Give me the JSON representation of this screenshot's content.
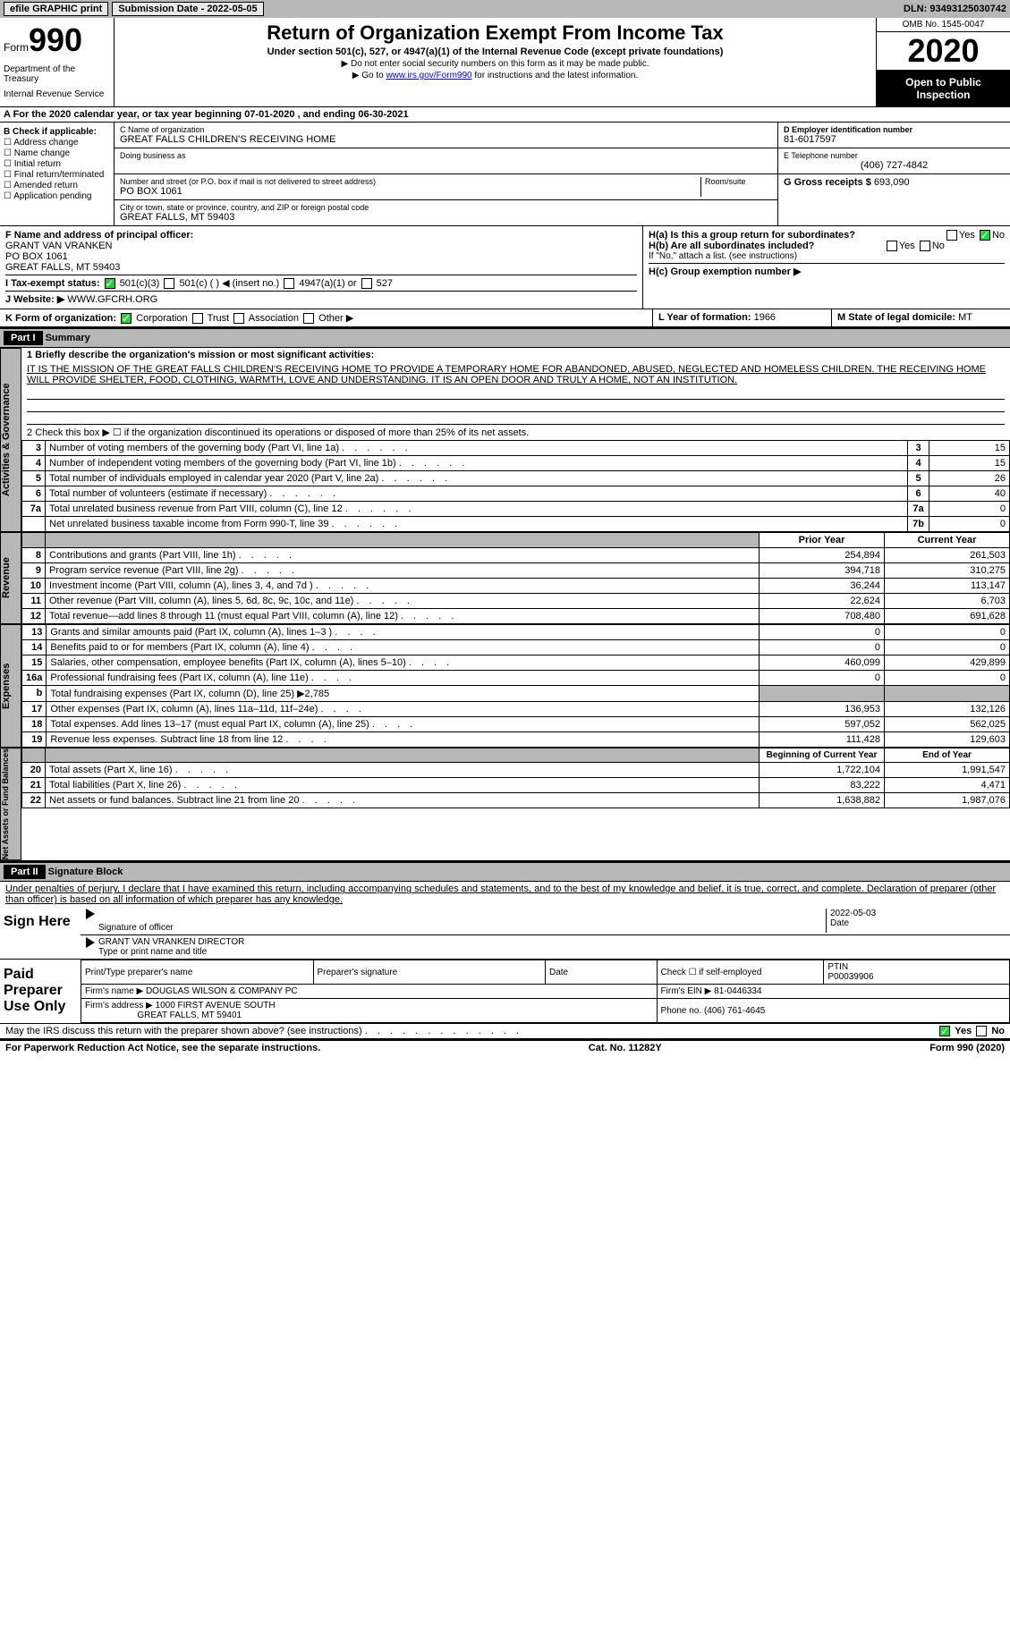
{
  "topbar": {
    "efile": "efile GRAPHIC print",
    "submission_label": "Submission Date - 2022-05-05",
    "dln": "DLN: 93493125030742"
  },
  "header": {
    "form_prefix": "Form",
    "form_num": "990",
    "dept": "Department of the Treasury",
    "irs": "Internal Revenue Service",
    "title": "Return of Organization Exempt From Income Tax",
    "subtitle": "Under section 501(c), 527, or 4947(a)(1) of the Internal Revenue Code (except private foundations)",
    "note1": "▶ Do not enter social security numbers on this form as it may be made public.",
    "note2_pre": "▶ Go to ",
    "note2_link": "www.irs.gov/Form990",
    "note2_post": " for instructions and the latest information.",
    "omb": "OMB No. 1545-0047",
    "year": "2020",
    "inspection": "Open to Public Inspection"
  },
  "row_a": "A For the 2020 calendar year, or tax year beginning 07-01-2020    , and ending 06-30-2021",
  "section_b": {
    "label": "B Check if applicable:",
    "opts": [
      "Address change",
      "Name change",
      "Initial return",
      "Final return/terminated",
      "Amended return",
      "Application pending"
    ]
  },
  "section_c": {
    "name_lbl": "C Name of organization",
    "name": "GREAT FALLS CHILDREN'S RECEIVING HOME",
    "dba_lbl": "Doing business as",
    "addr_lbl": "Number and street (or P.O. box if mail is not delivered to street address)",
    "room_lbl": "Room/suite",
    "addr": "PO BOX 1061",
    "city_lbl": "City or town, state or province, country, and ZIP or foreign postal code",
    "city": "GREAT FALLS, MT  59403"
  },
  "section_d": {
    "ein_lbl": "D Employer identification number",
    "ein": "81-6017597",
    "tel_lbl": "E Telephone number",
    "tel": "(406) 727-4842",
    "gross_lbl": "G Gross receipts $",
    "gross": "693,090"
  },
  "section_f": {
    "lbl": "F  Name and address of principal officer:",
    "name": "GRANT VAN VRANKEN",
    "addr1": "PO BOX 1061",
    "addr2": "GREAT FALLS, MT  59403"
  },
  "section_h": {
    "ha": "H(a)  Is this a group return for subordinates?",
    "hb": "H(b)  Are all subordinates included?",
    "hb_note": "If \"No,\" attach a list. (see instructions)",
    "hc": "H(c)  Group exemption number ▶",
    "yes": "Yes",
    "no": "No"
  },
  "row_i": {
    "lbl": "I    Tax-exempt status:",
    "opt1": "501(c)(3)",
    "opt2": "501(c) (  ) ◀ (insert no.)",
    "opt3": "4947(a)(1) or",
    "opt4": "527"
  },
  "row_j": {
    "lbl": "J   Website: ▶",
    "val": "WWW.GFCRH.ORG"
  },
  "row_k": {
    "lbl": "K Form of organization:",
    "opts": [
      "Corporation",
      "Trust",
      "Association",
      "Other ▶"
    ]
  },
  "row_l": {
    "lbl": "L Year of formation:",
    "val": "1966"
  },
  "row_m": {
    "lbl": "M State of legal domicile:",
    "val": "MT"
  },
  "part1": {
    "hdr": "Part I",
    "title": "Summary",
    "line1_lbl": "1  Briefly describe the organization's mission or most significant activities:",
    "mission": "IT IS THE MISSION OF THE GREAT FALLS CHILDREN'S RECEIVING HOME TO PROVIDE A TEMPORARY HOME FOR ABANDONED, ABUSED, NEGLECTED AND HOMELESS CHILDREN. THE RECEIVING HOME WILL PROVIDE SHELTER, FOOD, CLOTHING, WARMTH, LOVE AND UNDERSTANDING. IT IS AN OPEN DOOR AND TRULY A HOME, NOT AN INSTITUTION.",
    "line2": "2   Check this box ▶ ☐  if the organization discontinued its operations or disposed of more than 25% of its net assets."
  },
  "sidebar": {
    "gov": "Activities & Governance",
    "rev": "Revenue",
    "exp": "Expenses",
    "net": "Net Assets or Fund Balances"
  },
  "gov_rows": [
    {
      "n": "3",
      "d": "Number of voting members of the governing body (Part VI, line 1a)",
      "b": "3",
      "v": "15"
    },
    {
      "n": "4",
      "d": "Number of independent voting members of the governing body (Part VI, line 1b)",
      "b": "4",
      "v": "15"
    },
    {
      "n": "5",
      "d": "Total number of individuals employed in calendar year 2020 (Part V, line 2a)",
      "b": "5",
      "v": "26"
    },
    {
      "n": "6",
      "d": "Total number of volunteers (estimate if necessary)",
      "b": "6",
      "v": "40"
    },
    {
      "n": "7a",
      "d": "Total unrelated business revenue from Part VIII, column (C), line 12",
      "b": "7a",
      "v": "0"
    },
    {
      "n": "",
      "d": "Net unrelated business taxable income from Form 990-T, line 39",
      "b": "7b",
      "v": "0"
    }
  ],
  "headers_py": "Prior Year",
  "headers_cy": "Current Year",
  "rev_rows": [
    {
      "n": "8",
      "d": "Contributions and grants (Part VIII, line 1h)",
      "p": "254,894",
      "c": "261,503"
    },
    {
      "n": "9",
      "d": "Program service revenue (Part VIII, line 2g)",
      "p": "394,718",
      "c": "310,275"
    },
    {
      "n": "10",
      "d": "Investment income (Part VIII, column (A), lines 3, 4, and 7d )",
      "p": "36,244",
      "c": "113,147"
    },
    {
      "n": "11",
      "d": "Other revenue (Part VIII, column (A), lines 5, 6d, 8c, 9c, 10c, and 11e)",
      "p": "22,624",
      "c": "6,703"
    },
    {
      "n": "12",
      "d": "Total revenue—add lines 8 through 11 (must equal Part VIII, column (A), line 12)",
      "p": "708,480",
      "c": "691,628"
    }
  ],
  "exp_rows": [
    {
      "n": "13",
      "d": "Grants and similar amounts paid (Part IX, column (A), lines 1–3 )",
      "p": "0",
      "c": "0"
    },
    {
      "n": "14",
      "d": "Benefits paid to or for members (Part IX, column (A), line 4)",
      "p": "0",
      "c": "0"
    },
    {
      "n": "15",
      "d": "Salaries, other compensation, employee benefits (Part IX, column (A), lines 5–10)",
      "p": "460,099",
      "c": "429,899"
    },
    {
      "n": "16a",
      "d": "Professional fundraising fees (Part IX, column (A), line 11e)",
      "p": "0",
      "c": "0"
    },
    {
      "n": "b",
      "d": "Total fundraising expenses (Part IX, column (D), line 25) ▶2,785",
      "p": "",
      "c": ""
    },
    {
      "n": "17",
      "d": "Other expenses (Part IX, column (A), lines 11a–11d, 11f–24e)",
      "p": "136,953",
      "c": "132,126"
    },
    {
      "n": "18",
      "d": "Total expenses. Add lines 13–17 (must equal Part IX, column (A), line 25)",
      "p": "597,052",
      "c": "562,025"
    },
    {
      "n": "19",
      "d": "Revenue less expenses. Subtract line 18 from line 12",
      "p": "111,428",
      "c": "129,603"
    }
  ],
  "headers_boy": "Beginning of Current Year",
  "headers_eoy": "End of Year",
  "net_rows": [
    {
      "n": "20",
      "d": "Total assets (Part X, line 16)",
      "p": "1,722,104",
      "c": "1,991,547"
    },
    {
      "n": "21",
      "d": "Total liabilities (Part X, line 26)",
      "p": "83,222",
      "c": "4,471"
    },
    {
      "n": "22",
      "d": "Net assets or fund balances. Subtract line 21 from line 20",
      "p": "1,638,882",
      "c": "1,987,076"
    }
  ],
  "part2": {
    "hdr": "Part II",
    "title": "Signature Block",
    "decl": "Under penalties of perjury, I declare that I have examined this return, including accompanying schedules and statements, and to the best of my knowledge and belief, it is true, correct, and complete. Declaration of preparer (other than officer) is based on all information of which preparer has any knowledge."
  },
  "sign": {
    "here": "Sign Here",
    "sig_lbl": "Signature of officer",
    "date_lbl": "Date",
    "date": "2022-05-03",
    "name": "GRANT VAN VRANKEN  DIRECTOR",
    "name_lbl": "Type or print name and title"
  },
  "prep": {
    "title": "Paid Preparer Use Only",
    "h1": "Print/Type preparer's name",
    "h2": "Preparer's signature",
    "h3": "Date",
    "h4": "Check ☐ if self-employed",
    "h5": "PTIN",
    "ptin": "P00039906",
    "firm_lbl": "Firm's name    ▶",
    "firm": "DOUGLAS WILSON & COMPANY PC",
    "ein_lbl": "Firm's EIN ▶",
    "ein": "81-0446334",
    "addr_lbl": "Firm's address ▶",
    "addr1": "1000 FIRST AVENUE SOUTH",
    "addr2": "GREAT FALLS, MT  59401",
    "phone_lbl": "Phone no.",
    "phone": "(406) 761-4645"
  },
  "discuss": "May the IRS discuss this return with the preparer shown above? (see instructions)",
  "footer": {
    "left": "For Paperwork Reduction Act Notice, see the separate instructions.",
    "mid": "Cat. No. 11282Y",
    "right_pre": "Form ",
    "right_num": "990",
    "right_post": " (2020)"
  }
}
